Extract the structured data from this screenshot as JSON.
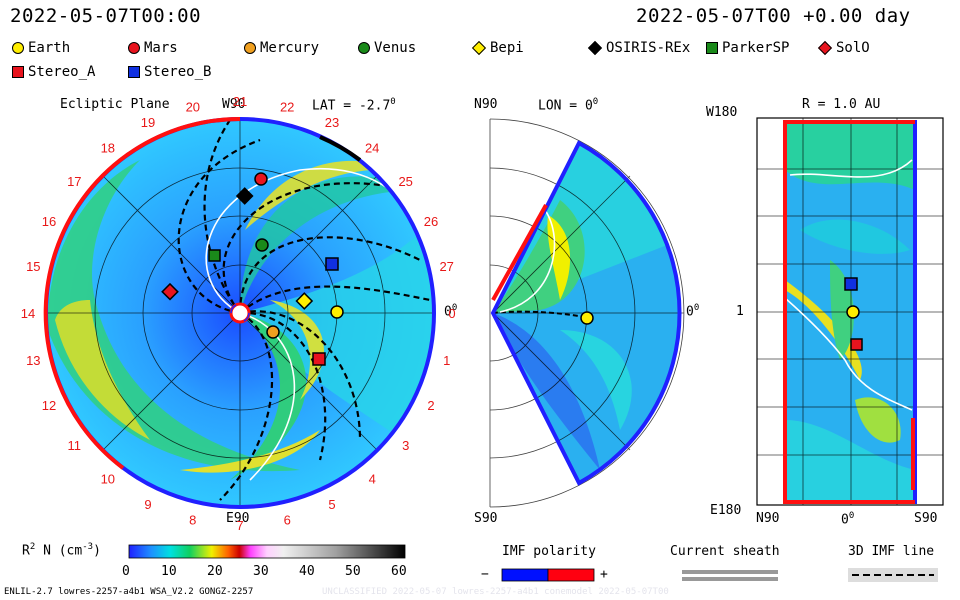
{
  "header": {
    "left_time": "2022-05-07T00:00",
    "right_time": "2022-05-07T00 +0.00 day"
  },
  "legend": [
    {
      "name": "Earth",
      "shape": "circle",
      "color": "#ffee00"
    },
    {
      "name": "Mars",
      "shape": "circle",
      "color": "#e8141e"
    },
    {
      "name": "Mercury",
      "shape": "circle",
      "color": "#f0a020"
    },
    {
      "name": "Venus",
      "shape": "circle",
      "color": "#1a8a1a"
    },
    {
      "name": "Bepi",
      "shape": "diamond",
      "color": "#ffee00"
    },
    {
      "name": "OSIRIS-REx",
      "shape": "diamond",
      "color": "#000000"
    },
    {
      "name": "ParkerSP",
      "shape": "square",
      "color": "#1a8a1a"
    },
    {
      "name": "SolO",
      "shape": "diamond",
      "color": "#e8141e"
    },
    {
      "name": "Stereo_A",
      "shape": "square",
      "color": "#e8141e"
    },
    {
      "name": "Stereo_B",
      "shape": "square",
      "color": "#1030e0"
    }
  ],
  "panels": {
    "ecliptic": {
      "title": "Ecliptic Plane",
      "lat": "LAT = -2.7",
      "deg": "0",
      "top": "W90",
      "bottom": "E90",
      "right": "0",
      "rdeg": "0"
    },
    "meridional": {
      "top": "N90",
      "lon": "LON = 0",
      "deg": "0",
      "bottom": "S90",
      "right": "0",
      "rdeg": "0"
    },
    "map": {
      "title": "R = 1.0 AU",
      "y_top": "W180",
      "y_mid": "1",
      "y_bottom": "E180",
      "x_left": "N90",
      "x_mid": "0",
      "x_mid_deg": "0",
      "x_right": "S90"
    }
  },
  "carrington_labels": [
    "19",
    "20",
    "21",
    "22",
    "23",
    "24",
    "25",
    "26",
    "27",
    "0",
    "1",
    "2",
    "3",
    "4",
    "5",
    "6",
    "7",
    "8",
    "9",
    "10",
    "11",
    "12",
    "13",
    "14",
    "15",
    "16",
    "17",
    "18"
  ],
  "colorbar": {
    "label": "R",
    "sup": "2",
    "label2": " N (cm",
    "sup2": "-3",
    "label3": ")",
    "ticks": [
      "0",
      "10",
      "20",
      "30",
      "40",
      "50",
      "60"
    ]
  },
  "imf": {
    "title": "IMF polarity",
    "minus": "−",
    "plus": "+",
    "neg_color": "#0010ff",
    "pos_color": "#ff0010"
  },
  "sheath": {
    "title": "Current sheath"
  },
  "imf3d": {
    "title": "3D IMF line"
  },
  "footer": {
    "left": "ENLIL-2.7 lowres-2257-a4b1 WSA_V2.2 GONGZ-2257",
    "right": "UNCLASSIFIED  2022-05-07  lowres-2257-a4b1  conemodel  2022-05-07T00"
  },
  "chart_data": {
    "type": "heatmap",
    "title": "",
    "quantity": "R2 N (cm-3)",
    "colorscale_range": [
      0,
      60
    ],
    "time": "2022-05-07T00:00",
    "offset_days": 0.0,
    "objects": [
      "Earth",
      "Mars",
      "Mercury",
      "Venus",
      "Bepi",
      "OSIRIS-REx",
      "ParkerSP",
      "SolO",
      "Stereo_A",
      "Stereo_B"
    ]
  }
}
